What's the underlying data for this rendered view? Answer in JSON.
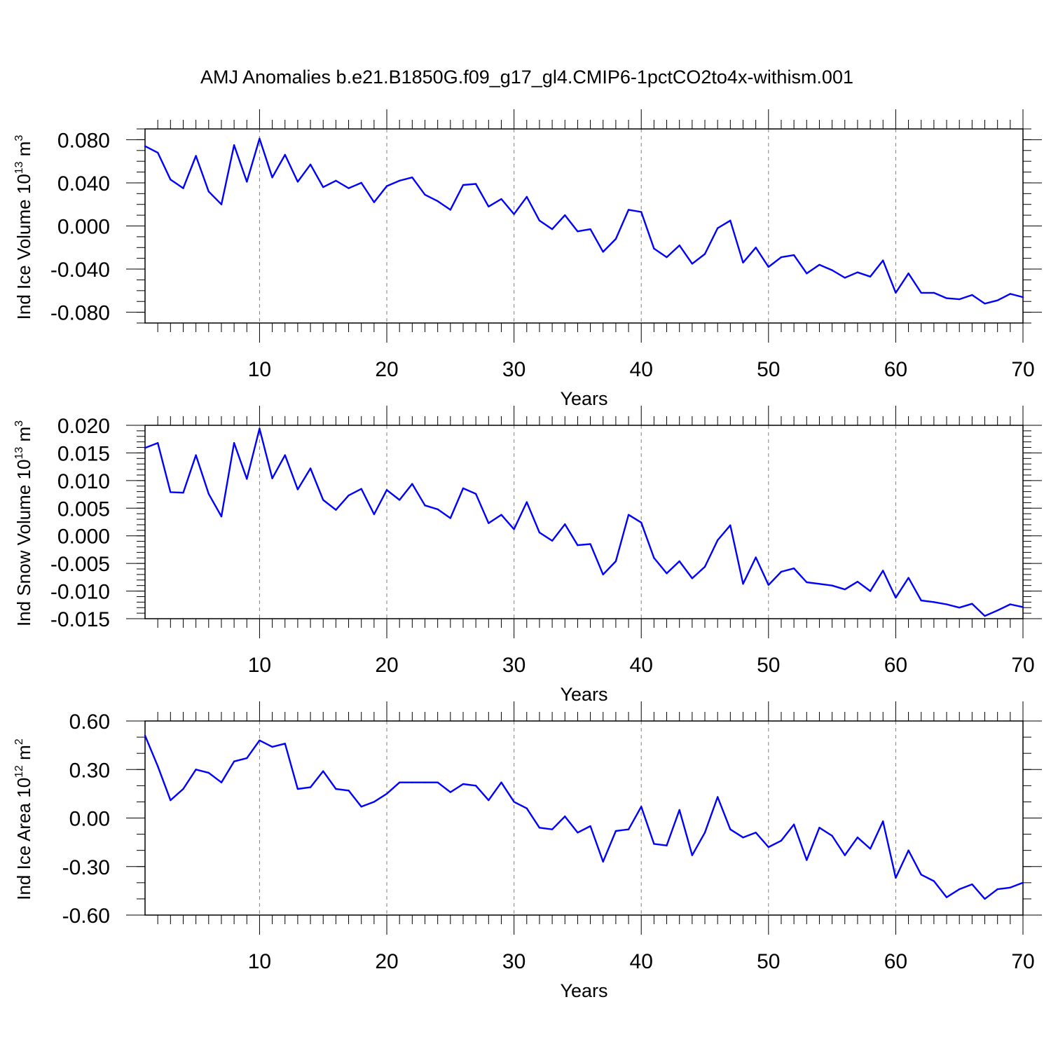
{
  "figure_title": "AMJ Anomalies b.e21.B1850G.f09_g17_gl4.CMIP6-1pctCO2to4x-withism.001",
  "colors": {
    "line": "#0000ff",
    "axes": "#000000",
    "grid": "#808080"
  },
  "chart_data": [
    {
      "type": "line",
      "title": "AMJ Anomalies b.e21.B1850G.f09_g17_gl4.CMIP6-1pctCO2to4x-withism.001",
      "xlabel": "Years",
      "ylabel_base": "Ind Ice Volume 10",
      "ylabel_exp": "13",
      "ylabel_unit": " m",
      "ylabel_unit_exp": "3",
      "xlim": [
        1,
        70
      ],
      "ylim": [
        -0.09,
        0.09
      ],
      "x_ticks": [
        10,
        20,
        30,
        40,
        50,
        60,
        70
      ],
      "x_tick_labels": [
        "10",
        "20",
        "30",
        "40",
        "50",
        "60",
        "70"
      ],
      "y_ticks": [
        0.08,
        0.04,
        0.0,
        -0.04,
        -0.08
      ],
      "y_tick_labels": [
        "0.080",
        "0.040",
        "0.000",
        "-0.040",
        "-0.080"
      ],
      "y_minor_step": 0.01,
      "grid": "dashed vertical at major x ticks",
      "x": [
        1,
        2,
        3,
        4,
        5,
        6,
        7,
        8,
        9,
        10,
        11,
        12,
        13,
        14,
        15,
        16,
        17,
        18,
        19,
        20,
        21,
        22,
        23,
        24,
        25,
        26,
        27,
        28,
        29,
        30,
        31,
        32,
        33,
        34,
        35,
        36,
        37,
        38,
        39,
        40,
        41,
        42,
        43,
        44,
        45,
        46,
        47,
        48,
        49,
        50,
        51,
        52,
        53,
        54,
        55,
        56,
        57,
        58,
        59,
        60,
        61,
        62,
        63,
        64,
        65,
        66,
        67,
        68,
        69,
        70
      ],
      "series": [
        {
          "name": "Ind Ice Volume",
          "values": [
            0.074,
            0.068,
            0.043,
            0.035,
            0.065,
            0.032,
            0.02,
            0.075,
            0.041,
            0.081,
            0.045,
            0.066,
            0.041,
            0.057,
            0.036,
            0.042,
            0.035,
            0.04,
            0.022,
            0.037,
            0.042,
            0.045,
            0.029,
            0.023,
            0.015,
            0.038,
            0.039,
            0.018,
            0.025,
            0.011,
            0.027,
            0.005,
            -0.003,
            0.01,
            -0.005,
            -0.003,
            -0.024,
            -0.012,
            0.015,
            0.013,
            -0.021,
            -0.029,
            -0.018,
            -0.035,
            -0.026,
            -0.002,
            0.005,
            -0.034,
            -0.02,
            -0.038,
            -0.029,
            -0.027,
            -0.044,
            -0.036,
            -0.041,
            -0.048,
            -0.043,
            -0.047,
            -0.032,
            -0.062,
            -0.044,
            -0.062,
            -0.062,
            -0.067,
            -0.068,
            -0.064,
            -0.072,
            -0.069,
            -0.063,
            -0.066
          ]
        }
      ]
    },
    {
      "type": "line",
      "xlabel": "Years",
      "ylabel_base": "Ind Snow Volume 10",
      "ylabel_exp": "13",
      "ylabel_unit": " m",
      "ylabel_unit_exp": "3",
      "xlim": [
        1,
        70
      ],
      "ylim": [
        -0.015,
        0.02
      ],
      "x_ticks": [
        10,
        20,
        30,
        40,
        50,
        60,
        70
      ],
      "x_tick_labels": [
        "10",
        "20",
        "30",
        "40",
        "50",
        "60",
        "70"
      ],
      "y_ticks": [
        0.02,
        0.015,
        0.01,
        0.005,
        0.0,
        -0.005,
        -0.01,
        -0.015
      ],
      "y_tick_labels": [
        "0.020",
        "0.015",
        "0.010",
        "0.005",
        "0.000",
        "-0.005",
        "-0.010",
        "-0.015"
      ],
      "y_minor_step": 0.001,
      "grid": "dashed vertical at major x ticks",
      "x": [
        1,
        2,
        3,
        4,
        5,
        6,
        7,
        8,
        9,
        10,
        11,
        12,
        13,
        14,
        15,
        16,
        17,
        18,
        19,
        20,
        21,
        22,
        23,
        24,
        25,
        26,
        27,
        28,
        29,
        30,
        31,
        32,
        33,
        34,
        35,
        36,
        37,
        38,
        39,
        40,
        41,
        42,
        43,
        44,
        45,
        46,
        47,
        48,
        49,
        50,
        51,
        52,
        53,
        54,
        55,
        56,
        57,
        58,
        59,
        60,
        61,
        62,
        63,
        64,
        65,
        66,
        67,
        68,
        69,
        70
      ],
      "series": [
        {
          "name": "Ind Snow Volume",
          "values": [
            0.0159,
            0.0168,
            0.0079,
            0.0078,
            0.0146,
            0.0076,
            0.0035,
            0.0168,
            0.0103,
            0.0194,
            0.0104,
            0.0146,
            0.0084,
            0.0122,
            0.0065,
            0.0047,
            0.0073,
            0.0085,
            0.0039,
            0.0083,
            0.0065,
            0.0094,
            0.0055,
            0.0048,
            0.0032,
            0.0086,
            0.0076,
            0.0023,
            0.0038,
            0.0012,
            0.0061,
            0.0006,
            -0.0009,
            0.0021,
            -0.0017,
            -0.0015,
            -0.007,
            -0.0046,
            0.0038,
            0.0024,
            -0.004,
            -0.0068,
            -0.0046,
            -0.0077,
            -0.0056,
            -0.0008,
            0.0019,
            -0.0087,
            -0.0039,
            -0.0089,
            -0.0065,
            -0.0059,
            -0.0084,
            -0.0087,
            -0.009,
            -0.0097,
            -0.0083,
            -0.01,
            -0.0063,
            -0.0112,
            -0.0076,
            -0.0117,
            -0.012,
            -0.0124,
            -0.013,
            -0.0123,
            -0.0145,
            -0.0135,
            -0.0124,
            -0.0129
          ]
        }
      ]
    },
    {
      "type": "line",
      "xlabel": "Years",
      "ylabel_base": "Ind Ice Area 10",
      "ylabel_exp": "12",
      "ylabel_unit": " m",
      "ylabel_unit_exp": "2",
      "xlim": [
        1,
        70
      ],
      "ylim": [
        -0.6,
        0.6
      ],
      "x_ticks": [
        10,
        20,
        30,
        40,
        50,
        60,
        70
      ],
      "x_tick_labels": [
        "10",
        "20",
        "30",
        "40",
        "50",
        "60",
        "70"
      ],
      "y_ticks": [
        0.6,
        0.3,
        0.0,
        -0.3,
        -0.6
      ],
      "y_tick_labels": [
        "0.60",
        "0.30",
        "0.00",
        "-0.30",
        "-0.60"
      ],
      "y_minor_step": 0.1,
      "grid": "dashed vertical at major x ticks",
      "x": [
        1,
        2,
        3,
        4,
        5,
        6,
        7,
        8,
        9,
        10,
        11,
        12,
        13,
        14,
        15,
        16,
        17,
        18,
        19,
        20,
        21,
        22,
        23,
        24,
        25,
        26,
        27,
        28,
        29,
        30,
        31,
        32,
        33,
        34,
        35,
        36,
        37,
        38,
        39,
        40,
        41,
        42,
        43,
        44,
        45,
        46,
        47,
        48,
        49,
        50,
        51,
        52,
        53,
        54,
        55,
        56,
        57,
        58,
        59,
        60,
        61,
        62,
        63,
        64,
        65,
        66,
        67,
        68,
        69,
        70
      ],
      "series": [
        {
          "name": "Ind Ice Area",
          "values": [
            0.51,
            0.32,
            0.11,
            0.18,
            0.3,
            0.28,
            0.22,
            0.35,
            0.37,
            0.48,
            0.44,
            0.46,
            0.18,
            0.19,
            0.29,
            0.18,
            0.17,
            0.07,
            0.1,
            0.15,
            0.22,
            0.22,
            0.22,
            0.22,
            0.16,
            0.21,
            0.2,
            0.11,
            0.22,
            0.1,
            0.06,
            -0.06,
            -0.07,
            0.01,
            -0.09,
            -0.05,
            -0.27,
            -0.08,
            -0.07,
            0.07,
            -0.16,
            -0.17,
            0.05,
            -0.23,
            -0.09,
            0.13,
            -0.07,
            -0.12,
            -0.09,
            -0.18,
            -0.14,
            -0.04,
            -0.26,
            -0.06,
            -0.11,
            -0.23,
            -0.12,
            -0.19,
            -0.02,
            -0.37,
            -0.2,
            -0.35,
            -0.39,
            -0.49,
            -0.44,
            -0.41,
            -0.5,
            -0.44,
            -0.43,
            -0.4
          ]
        }
      ]
    }
  ]
}
